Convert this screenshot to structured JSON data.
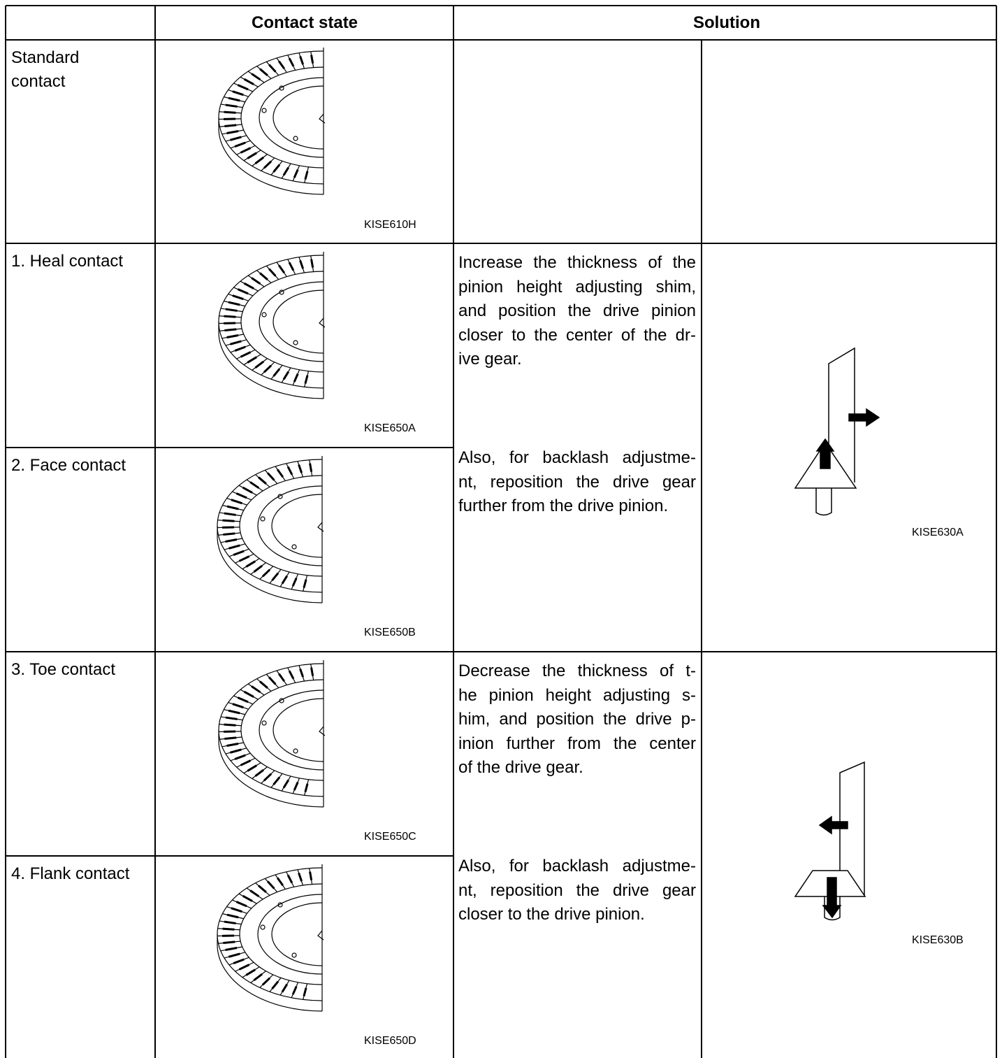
{
  "header": {
    "contact_state": "Contact state",
    "solution": "Solution"
  },
  "rows": [
    {
      "label_lines": [
        "Standard",
        "contact"
      ],
      "image_code": "KISE610H"
    },
    {
      "label_lines": [
        "1. Heal contact"
      ],
      "image_code": "KISE650A"
    },
    {
      "label_lines": [
        "2. Face contact"
      ],
      "image_code": "KISE650B"
    },
    {
      "label_lines": [
        "3. Toe contact"
      ],
      "image_code": "KISE650C"
    },
    {
      "label_lines": [
        "4. Flank contact"
      ],
      "image_code": "KISE650D"
    }
  ],
  "solutions": [
    {
      "paragraphs": [
        [
          "Increase the thickness of the",
          "pinion height adjusting shim,",
          "and position the drive pinion",
          "closer to the center of the dr-",
          "ive gear."
        ],
        [
          "Also, for backlash adjustme-",
          "nt, reposition the drive gear",
          "further from the drive pinion."
        ]
      ],
      "image_code": "KISE630A"
    },
    {
      "paragraphs": [
        [
          "Decrease the thickness of t-",
          "he pinion height adjusting s-",
          "him, and position the drive p-",
          "inion further from the center",
          "of the drive gear."
        ],
        [
          "Also, for backlash adjustme-",
          "nt, reposition the drive gear",
          "closer to the drive pinion."
        ]
      ],
      "image_code": "KISE630B"
    }
  ]
}
